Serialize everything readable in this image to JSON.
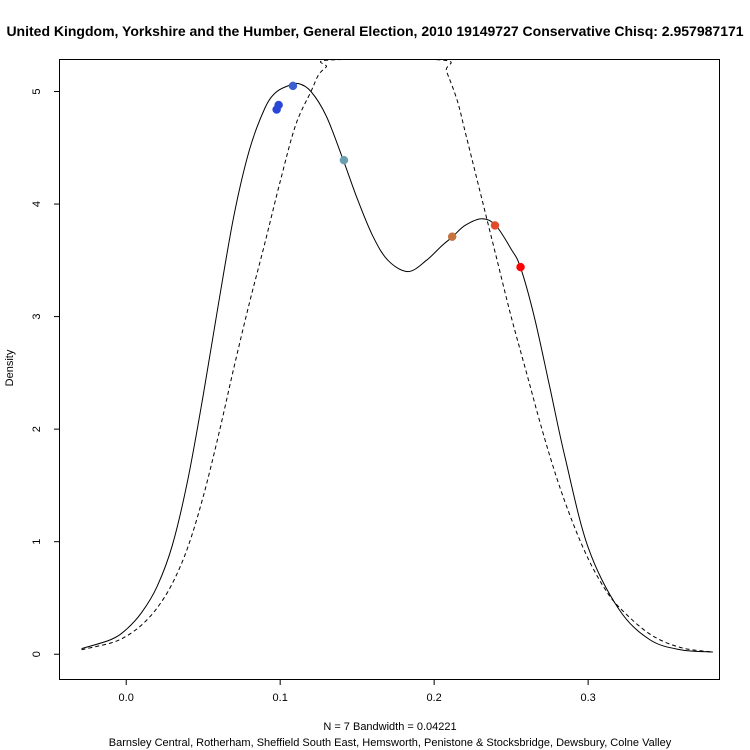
{
  "chart_data": {
    "type": "line",
    "title": "United Kingdom, Yorkshire and the Humber, General Election, 2010 19149727 Conservative Chisq: 2.957987171",
    "xlabel": "N = 7   Bandwidth = 0.04221",
    "subtitle": "Barnsley Central, Rotherham, Sheffield South East, Hemsworth, Penistone & Stocksbridge, Dewsbury, Colne Valley",
    "ylabel": "Density",
    "xlim": [
      -0.043,
      0.385
    ],
    "ylim": [
      -0.22,
      5.28
    ],
    "xticks": [
      {
        "value": 0.0,
        "label": "0.0"
      },
      {
        "value": 0.1,
        "label": "0.1"
      },
      {
        "value": 0.2,
        "label": "0.2"
      },
      {
        "value": 0.3,
        "label": "0.3"
      }
    ],
    "yticks": [
      {
        "value": 0,
        "label": "0"
      },
      {
        "value": 1,
        "label": "1"
      },
      {
        "value": 2,
        "label": "2"
      },
      {
        "value": 3,
        "label": "3"
      },
      {
        "value": 4,
        "label": "4"
      },
      {
        "value": 5,
        "label": "5"
      }
    ],
    "grid": false,
    "series": [
      {
        "style": "solid",
        "x": [
          -0.029,
          -0.01,
          0.0,
          0.01,
          0.02,
          0.03,
          0.04,
          0.05,
          0.06,
          0.07,
          0.08,
          0.09,
          0.097,
          0.105,
          0.112,
          0.12,
          0.13,
          0.141,
          0.15,
          0.16,
          0.17,
          0.183,
          0.195,
          0.205,
          0.212,
          0.22,
          0.231,
          0.24,
          0.25,
          0.256,
          0.265,
          0.275,
          0.285,
          0.3,
          0.32,
          0.34,
          0.36,
          0.381
        ],
        "y": [
          0.05,
          0.13,
          0.22,
          0.37,
          0.6,
          0.97,
          1.55,
          2.3,
          3.12,
          3.9,
          4.48,
          4.85,
          4.99,
          5.05,
          5.07,
          5.0,
          4.78,
          4.39,
          4.05,
          3.72,
          3.5,
          3.4,
          3.5,
          3.63,
          3.71,
          3.81,
          3.87,
          3.81,
          3.6,
          3.44,
          3.0,
          2.38,
          1.75,
          0.95,
          0.4,
          0.13,
          0.04,
          0.02
        ]
      },
      {
        "style": "dashed",
        "x": [
          -0.029,
          -0.01,
          0.0,
          0.01,
          0.02,
          0.03,
          0.04,
          0.05,
          0.06,
          0.07,
          0.08,
          0.09,
          0.1,
          0.11,
          0.12,
          0.125,
          0.13,
          0.132,
          0.205,
          0.208,
          0.215,
          0.22,
          0.23,
          0.24,
          0.25,
          0.26,
          0.27,
          0.28,
          0.29,
          0.3,
          0.31,
          0.32,
          0.34,
          0.36,
          0.381
        ],
        "y": [
          0.04,
          0.1,
          0.16,
          0.26,
          0.41,
          0.63,
          0.95,
          1.4,
          1.95,
          2.55,
          3.12,
          3.65,
          4.2,
          4.7,
          5.0,
          5.15,
          5.22,
          5.28,
          5.28,
          5.18,
          4.92,
          4.65,
          4.1,
          3.55,
          3.0,
          2.5,
          2.0,
          1.55,
          1.17,
          0.85,
          0.6,
          0.42,
          0.18,
          0.06,
          0.02
        ]
      }
    ],
    "points": [
      {
        "x": 0.0977,
        "y": 4.84,
        "color": "#2a43d9"
      },
      {
        "x": 0.099,
        "y": 4.88,
        "color": "#2b47d6"
      },
      {
        "x": 0.1083,
        "y": 5.05,
        "color": "#3a5fd1"
      },
      {
        "x": 0.1414,
        "y": 4.39,
        "color": "#6a9fb0"
      },
      {
        "x": 0.2117,
        "y": 3.71,
        "color": "#c7733e"
      },
      {
        "x": 0.2395,
        "y": 3.81,
        "color": "#e34a2a"
      },
      {
        "x": 0.2561,
        "y": 3.44,
        "color": "#ff0000"
      }
    ]
  }
}
